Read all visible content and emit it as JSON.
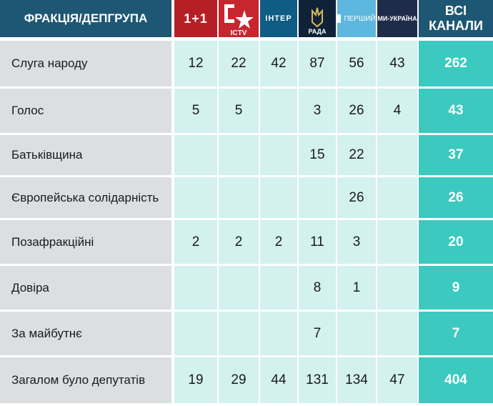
{
  "header": {
    "faction_label": "ФРАКЦІЯ/ДЕПГРУПА",
    "channels": [
      {
        "name": "1+1",
        "icon": "1plus1-logo-icon",
        "color": "#b52027"
      },
      {
        "name": "ICTV",
        "icon": "ictv-logo-icon",
        "color": "#c8262f"
      },
      {
        "name": "ІНТЕР",
        "icon": "inter-logo-icon",
        "color": "#0f5c84"
      },
      {
        "name": "РАДА",
        "icon": "rada-trident-icon",
        "color": "#0f2238"
      },
      {
        "name": "ПЕРШИЙ",
        "icon": "pershyi-logo-icon",
        "color": "#5db7df"
      },
      {
        "name": "МИ-УКРАЇНА",
        "icon": "my-ukraina-logo-icon",
        "color": "#1e2b4b"
      }
    ],
    "total_label_line1": "ВСІ",
    "total_label_line2": "КАНАЛИ"
  },
  "chart_data": {
    "type": "table",
    "columns": [
      "1+1",
      "ICTV",
      "ІНТЕР",
      "РАДА",
      "ПЕРШИЙ",
      "МИ-УКРАЇНА",
      "ВСІ КАНАЛИ"
    ],
    "rows": [
      {
        "faction": "Слуга народу",
        "values": [
          "12",
          "22",
          "42",
          "87",
          "56",
          "43"
        ],
        "total": "262"
      },
      {
        "faction": "Голос",
        "values": [
          "5",
          "5",
          "",
          "3",
          "26",
          "4"
        ],
        "total": "43"
      },
      {
        "faction": "Батьківщина",
        "values": [
          "",
          "",
          "",
          "15",
          "22",
          ""
        ],
        "total": "37"
      },
      {
        "faction": "Європейська солідарність",
        "values": [
          "",
          "",
          "",
          "",
          "26",
          ""
        ],
        "total": "26"
      },
      {
        "faction": "Позафракційні",
        "values": [
          "2",
          "2",
          "2",
          "11",
          "3",
          ""
        ],
        "total": "20"
      },
      {
        "faction": "Довіра",
        "values": [
          "",
          "",
          "",
          "8",
          "1",
          ""
        ],
        "total": "9"
      },
      {
        "faction": "За майбутнє",
        "values": [
          "",
          "",
          "",
          "7",
          "",
          ""
        ],
        "total": "7"
      },
      {
        "faction": "Загалом було депутатів",
        "values": [
          "19",
          "29",
          "44",
          "131",
          "134",
          "47"
        ],
        "total": "404"
      }
    ]
  },
  "colors": {
    "header_bg": "#1e5773",
    "faction_bg": "#dcdfe2",
    "value_bg": "#d3f1ee",
    "total_bg": "#3cc9bf"
  }
}
